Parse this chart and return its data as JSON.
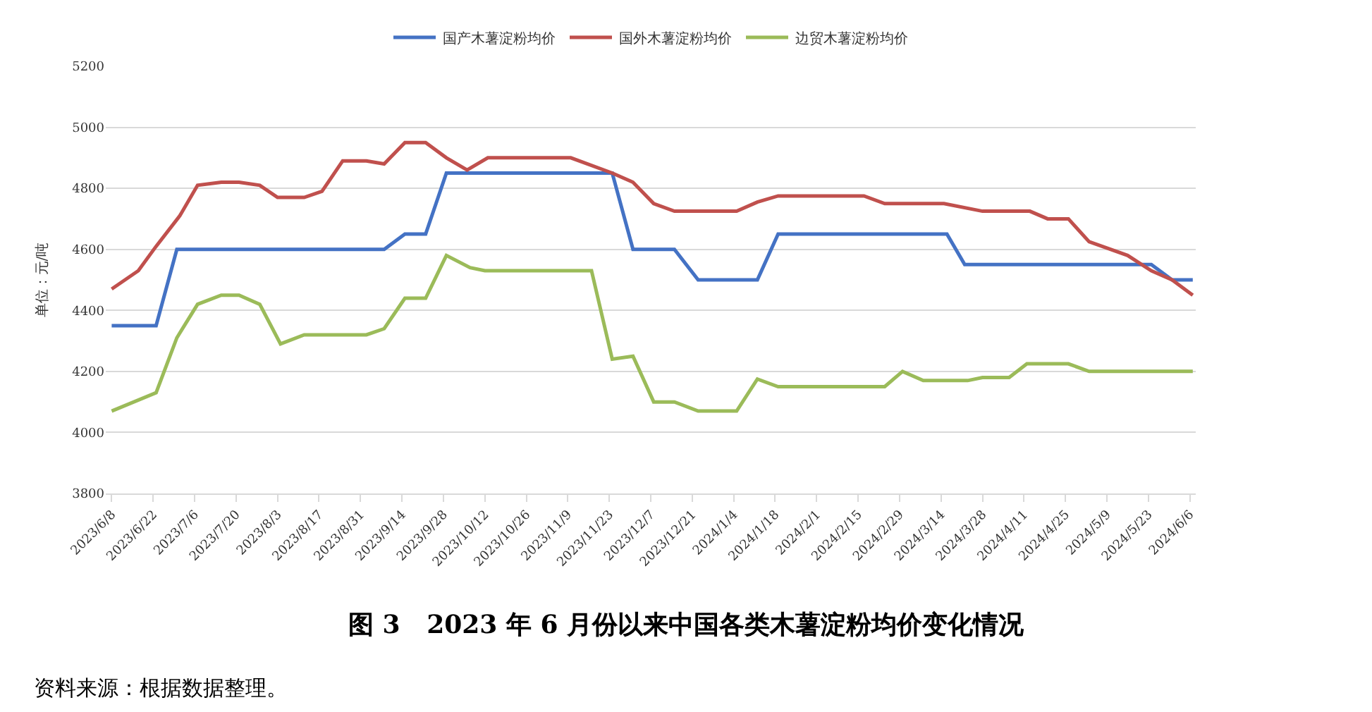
{
  "chart_data": {
    "type": "line",
    "title": "图 3   2023 年 6 月份以来中国各类木薯淀粉均价变化情况",
    "ylabel": "单位：元/吨",
    "annotations": [
      "资料来源：根据数据整理。"
    ],
    "xlim": [
      "2023-06-06",
      "2024-06-08"
    ],
    "xticks": [
      {
        "value": "2023-06-08",
        "label": "2023/6/8"
      },
      {
        "value": "2023-06-22",
        "label": "2023/6/22"
      },
      {
        "value": "2023-07-06",
        "label": "2023/7/6"
      },
      {
        "value": "2023-07-20",
        "label": "2023/7/20"
      },
      {
        "value": "2023-08-03",
        "label": "2023/8/3"
      },
      {
        "value": "2023-08-17",
        "label": "2023/8/17"
      },
      {
        "value": "2023-08-31",
        "label": "2023/8/31"
      },
      {
        "value": "2023-09-14",
        "label": "2023/9/14"
      },
      {
        "value": "2023-09-28",
        "label": "2023/9/28"
      },
      {
        "value": "2023-10-12",
        "label": "2023/10/12"
      },
      {
        "value": "2023-10-26",
        "label": "2023/10/26"
      },
      {
        "value": "2023-11-09",
        "label": "2023/11/9"
      },
      {
        "value": "2023-11-23",
        "label": "2023/11/23"
      },
      {
        "value": "2023-12-07",
        "label": "2023/12/7"
      },
      {
        "value": "2023-12-21",
        "label": "2023/12/21"
      },
      {
        "value": "2024-01-04",
        "label": "2024/1/4"
      },
      {
        "value": "2024-01-18",
        "label": "2024/1/18"
      },
      {
        "value": "2024-02-01",
        "label": "2024/2/1"
      },
      {
        "value": "2024-02-15",
        "label": "2024/2/15"
      },
      {
        "value": "2024-02-29",
        "label": "2024/2/29"
      },
      {
        "value": "2024-03-14",
        "label": "2024/3/14"
      },
      {
        "value": "2024-03-28",
        "label": "2024/3/28"
      },
      {
        "value": "2024-04-11",
        "label": "2024/4/11"
      },
      {
        "value": "2024-04-25",
        "label": "2024/4/25"
      },
      {
        "value": "2024-05-09",
        "label": "2024/5/9"
      },
      {
        "value": "2024-05-23",
        "label": "2024/5/23"
      },
      {
        "value": "2024-06-06",
        "label": "2024/6/6"
      }
    ],
    "ylim": [
      3800,
      5200
    ],
    "yticks": [
      3800,
      4000,
      4200,
      4400,
      4600,
      4800,
      5000,
      5200
    ],
    "grid": "y",
    "legend": "top",
    "marker": "none",
    "line_style": "solid",
    "series": [
      {
        "name": "国产木薯淀粉均价",
        "color": "#4472c4",
        "x": [
          "2023-06-08",
          "2023-06-23",
          "2023-06-30",
          "2023-09-08",
          "2023-09-15",
          "2023-09-22",
          "2023-09-29",
          "2023-11-24",
          "2023-12-01",
          "2023-12-15",
          "2023-12-23",
          "2024-01-12",
          "2024-01-19",
          "2024-03-16",
          "2024-03-22",
          "2024-05-24",
          "2024-05-31",
          "2024-06-07"
        ],
        "values": [
          4350,
          4350,
          4600,
          4600,
          4650,
          4650,
          4850,
          4850,
          4600,
          4600,
          4500,
          4500,
          4650,
          4650,
          4550,
          4550,
          4500,
          4500
        ]
      },
      {
        "name": "国外木薯淀粉均价",
        "color": "#c0504d",
        "x": [
          "2023-06-08",
          "2023-06-17",
          "2023-06-23",
          "2023-07-01",
          "2023-07-07",
          "2023-07-15",
          "2023-07-21",
          "2023-07-28",
          "2023-08-03",
          "2023-08-12",
          "2023-08-18",
          "2023-08-25",
          "2023-09-02",
          "2023-09-08",
          "2023-09-15",
          "2023-09-22",
          "2023-09-29",
          "2023-10-06",
          "2023-10-13",
          "2023-11-10",
          "2023-11-24",
          "2023-12-01",
          "2023-12-08",
          "2023-12-15",
          "2024-01-05",
          "2024-01-12",
          "2024-01-19",
          "2024-02-17",
          "2024-02-24",
          "2024-03-15",
          "2024-03-28",
          "2024-04-13",
          "2024-04-19",
          "2024-04-26",
          "2024-05-03",
          "2024-05-16",
          "2024-05-24",
          "2024-05-31",
          "2024-06-07"
        ],
        "values": [
          4470,
          4530,
          4610,
          4710,
          4810,
          4820,
          4820,
          4810,
          4770,
          4770,
          4790,
          4890,
          4890,
          4880,
          4950,
          4950,
          4900,
          4860,
          4900,
          4900,
          4850,
          4820,
          4750,
          4725,
          4725,
          4755,
          4775,
          4775,
          4750,
          4750,
          4725,
          4725,
          4700,
          4700,
          4625,
          4580,
          4530,
          4500,
          4450
        ]
      },
      {
        "name": "边贸木薯淀粉均价",
        "color": "#9bbb59",
        "x": [
          "2023-06-08",
          "2023-06-23",
          "2023-06-30",
          "2023-07-07",
          "2023-07-15",
          "2023-07-21",
          "2023-07-28",
          "2023-08-04",
          "2023-08-12",
          "2023-09-02",
          "2023-09-08",
          "2023-09-15",
          "2023-09-22",
          "2023-09-29",
          "2023-10-07",
          "2023-10-12",
          "2023-11-17",
          "2023-11-24",
          "2023-12-01",
          "2023-12-08",
          "2023-12-15",
          "2023-12-23",
          "2024-01-05",
          "2024-01-12",
          "2024-01-19",
          "2024-02-24",
          "2024-03-01",
          "2024-03-08",
          "2024-03-23",
          "2024-03-28",
          "2024-04-06",
          "2024-04-12",
          "2024-04-26",
          "2024-05-03",
          "2024-06-07"
        ],
        "values": [
          4070,
          4130,
          4310,
          4420,
          4450,
          4450,
          4420,
          4290,
          4320,
          4320,
          4340,
          4440,
          4440,
          4580,
          4540,
          4530,
          4530,
          4240,
          4250,
          4100,
          4100,
          4070,
          4070,
          4175,
          4150,
          4150,
          4200,
          4170,
          4170,
          4180,
          4180,
          4225,
          4225,
          4200,
          4200
        ]
      }
    ]
  }
}
